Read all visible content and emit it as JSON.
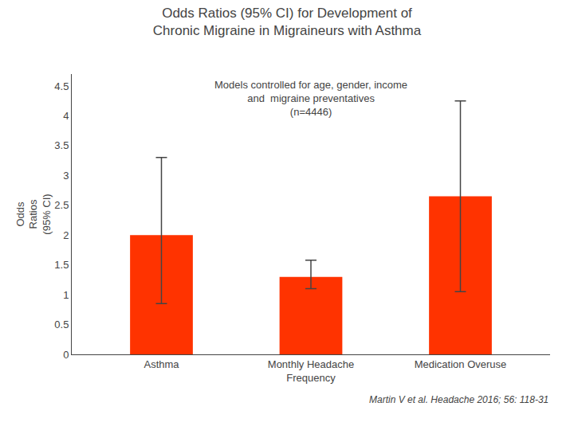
{
  "chart_data": {
    "type": "bar",
    "title": "Odds Ratios (95% CI) for Development of\nChronic Migraine in Migraineurs with Asthma",
    "categories": [
      "Asthma",
      "Monthly Headache\nFrequency",
      "Medication Overuse"
    ],
    "values": [
      2.0,
      1.3,
      2.65
    ],
    "ci_lower": [
      0.85,
      1.1,
      1.05
    ],
    "ci_upper": [
      3.3,
      1.58,
      4.25
    ],
    "color": "#FF3300",
    "ylabel": "Odds\nRatios\n(95% CI)",
    "ylim": [
      0,
      4.7
    ],
    "yticks": [
      0,
      0.5,
      1,
      1.5,
      2,
      2.5,
      3,
      3.5,
      4,
      4.5
    ],
    "grid": false,
    "annotations": [
      "Models controlled for age, gender, income\nand  migraine preventatives\n(n=4446)",
      "Martin V et al. Headache 2016; 56: 118-31"
    ]
  }
}
